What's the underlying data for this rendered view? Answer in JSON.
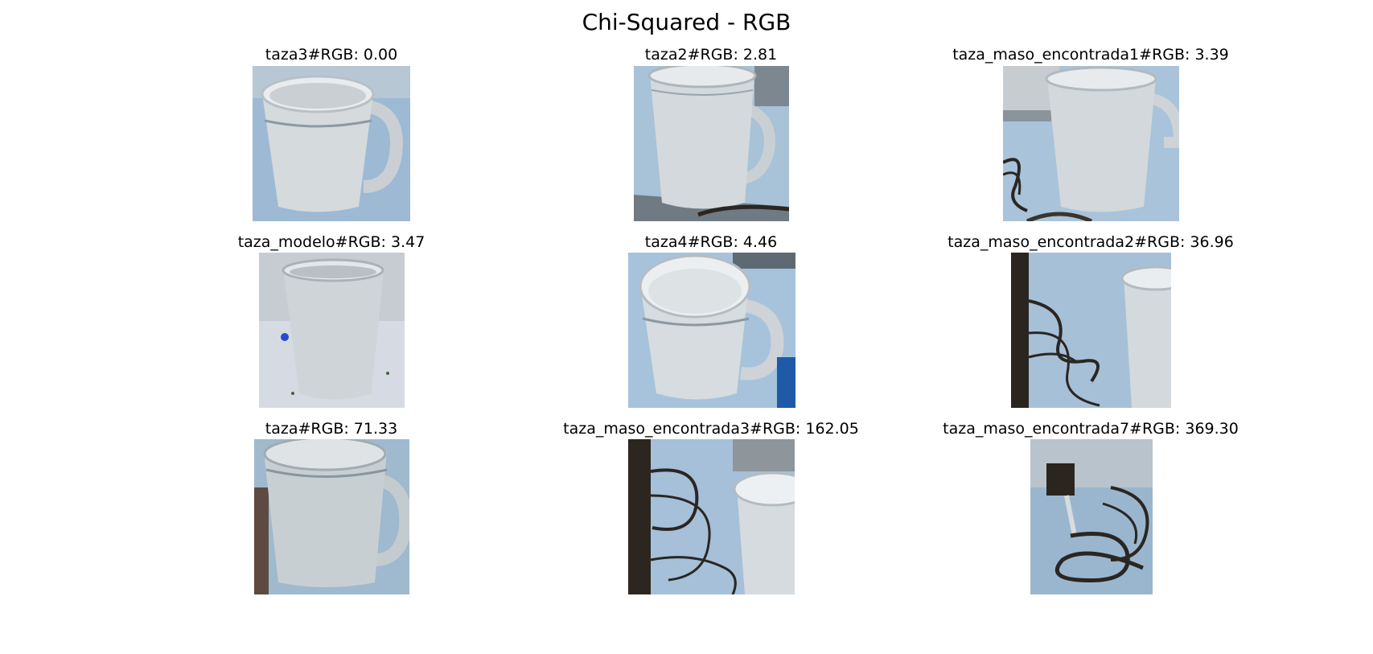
{
  "figure": {
    "title": "Chi-Squared - RGB"
  },
  "panels": [
    {
      "label": "taza3#RGB: 0.00",
      "depicts": "white-mug-with-handle-icon"
    },
    {
      "label": "taza2#RGB: 2.81",
      "depicts": "white-mug-with-handle-icon"
    },
    {
      "label": "taza_maso_encontrada1#RGB: 3.39",
      "depicts": "white-mug-with-handle-icon"
    },
    {
      "label": "taza_modelo#RGB: 3.47",
      "depicts": "white-mug-icon"
    },
    {
      "label": "taza4#RGB: 4.46",
      "depicts": "white-mug-with-handle-icon"
    },
    {
      "label": "taza_maso_encontrada2#RGB: 36.96",
      "depicts": "cables-and-mug-edge-icon"
    },
    {
      "label": "taza#RGB: 71.33",
      "depicts": "white-mug-with-handle-icon"
    },
    {
      "label": "taza_maso_encontrada3#RGB: 162.05",
      "depicts": "cables-and-mug-edge-icon"
    },
    {
      "label": "taza_maso_encontrada7#RGB: 369.30",
      "depicts": "cables-icon"
    }
  ],
  "colors": {
    "background": "#ffffff",
    "mug_white": "#d9dde0",
    "mug_shadow": "#aab2b8",
    "table_blue": "#9fbcd8",
    "cable_dark": "#2a2622"
  }
}
